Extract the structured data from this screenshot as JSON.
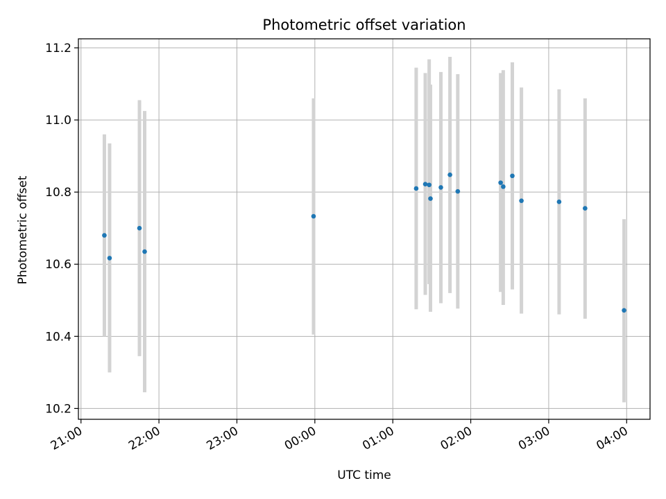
{
  "chart_data": {
    "type": "scatter",
    "title": "Photometric offset variation",
    "xlabel": "UTC time",
    "ylabel": "Photometric offset",
    "x_tick_labels": [
      "21:00",
      "22:00",
      "23:00",
      "00:00",
      "01:00",
      "02:00",
      "03:00",
      "04:00"
    ],
    "x_ticks": [
      "21:00",
      "22:00",
      "23:00",
      "00:00",
      "01:00",
      "02:00",
      "03:00",
      "04:00"
    ],
    "xlim": [
      "20:58",
      "04:18"
    ],
    "y_tick_labels": [
      "10.2",
      "10.4",
      "10.6",
      "10.8",
      "11.0",
      "11.2"
    ],
    "y_ticks": [
      10.2,
      10.4,
      10.6,
      10.8,
      11.0,
      11.2
    ],
    "ylim": [
      10.17,
      11.225
    ],
    "grid": true,
    "colors": {
      "marker": "#1f77b4",
      "errorbar": "#d3d3d3",
      "grid": "#b0b0b0"
    },
    "points": [
      {
        "x": "21:18",
        "y": 10.68,
        "yerr_low": 10.4,
        "yerr_high": 10.96
      },
      {
        "x": "21:22",
        "y": 10.617,
        "yerr_low": 10.3,
        "yerr_high": 10.935
      },
      {
        "x": "21:45",
        "y": 10.7,
        "yerr_low": 10.345,
        "yerr_high": 11.055
      },
      {
        "x": "21:49",
        "y": 10.635,
        "yerr_low": 10.245,
        "yerr_high": 11.025
      },
      {
        "x": "23:59",
        "y": 10.733,
        "yerr_low": 10.405,
        "yerr_high": 11.06
      },
      {
        "x": "01:18",
        "y": 10.81,
        "yerr_low": 10.475,
        "yerr_high": 11.145
      },
      {
        "x": "01:25",
        "y": 10.822,
        "yerr_low": 10.515,
        "yerr_high": 11.13
      },
      {
        "x": "01:28",
        "y": 10.82,
        "yerr_low": 10.545,
        "yerr_high": 11.168
      },
      {
        "x": "01:29",
        "y": 10.782,
        "yerr_low": 10.468,
        "yerr_high": 11.098
      },
      {
        "x": "01:37",
        "y": 10.813,
        "yerr_low": 10.492,
        "yerr_high": 11.133
      },
      {
        "x": "01:44",
        "y": 10.848,
        "yerr_low": 10.52,
        "yerr_high": 11.175
      },
      {
        "x": "01:50",
        "y": 10.802,
        "yerr_low": 10.477,
        "yerr_high": 11.127
      },
      {
        "x": "02:23",
        "y": 10.826,
        "yerr_low": 10.523,
        "yerr_high": 11.13
      },
      {
        "x": "02:25",
        "y": 10.815,
        "yerr_low": 10.487,
        "yerr_high": 11.138
      },
      {
        "x": "02:32",
        "y": 10.845,
        "yerr_low": 10.53,
        "yerr_high": 11.16
      },
      {
        "x": "02:39",
        "y": 10.776,
        "yerr_low": 10.463,
        "yerr_high": 11.09
      },
      {
        "x": "03:08",
        "y": 10.773,
        "yerr_low": 10.461,
        "yerr_high": 11.085
      },
      {
        "x": "03:28",
        "y": 10.755,
        "yerr_low": 10.449,
        "yerr_high": 11.06
      },
      {
        "x": "03:58",
        "y": 10.472,
        "yerr_low": 10.217,
        "yerr_high": 10.725
      }
    ]
  }
}
